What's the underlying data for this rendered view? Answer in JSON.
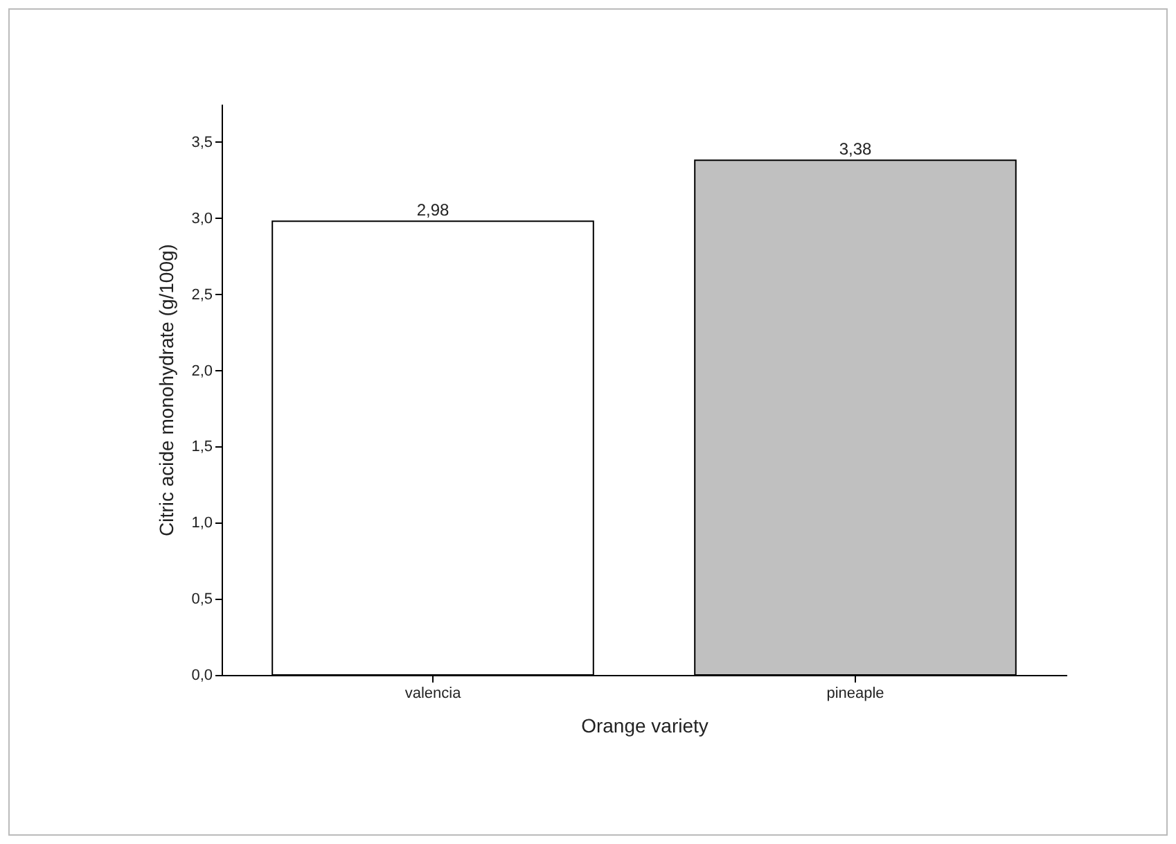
{
  "chart_data": {
    "type": "bar",
    "xlabel": "Orange variety",
    "ylabel": "Citric acide monohydrate (g/100g)",
    "categories": [
      "valencia",
      "pineaple"
    ],
    "values": [
      2.98,
      3.38
    ],
    "colors": [
      "#ffffff",
      "#c0c0c0"
    ],
    "value_labels": [
      "2,98",
      "3,38"
    ],
    "ylim": [
      0,
      3.75
    ],
    "yticks": [
      {
        "value": 0,
        "label": "0,0"
      },
      {
        "value": 0.5,
        "label": "0,5"
      },
      {
        "value": 1,
        "label": "1,0"
      },
      {
        "value": 1.5,
        "label": "1,5"
      },
      {
        "value": 2,
        "label": "2,0"
      },
      {
        "value": 2.5,
        "label": "2,5"
      },
      {
        "value": 3,
        "label": "3,0"
      },
      {
        "value": 3.5,
        "label": "3,5"
      }
    ],
    "grid": false
  }
}
